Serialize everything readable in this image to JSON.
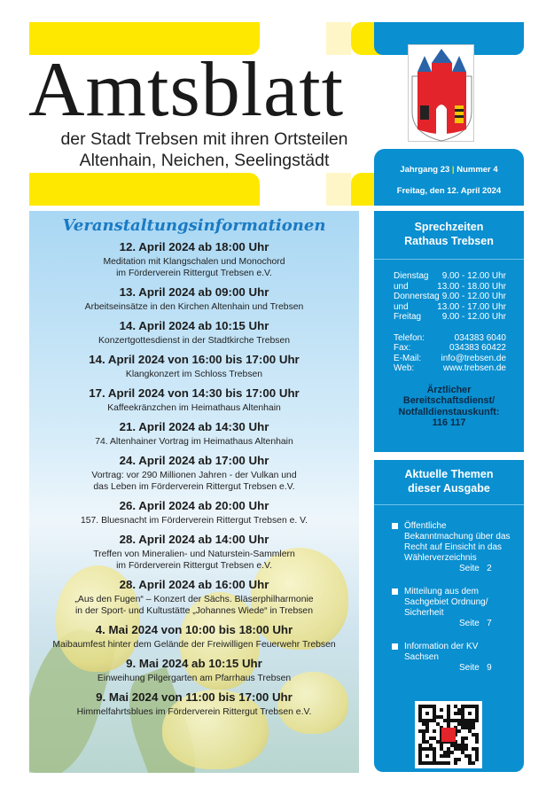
{
  "masthead": {
    "title": "Amtsblatt",
    "subtitle_line1": "der Stadt Trebsen mit ihren Ortsteilen",
    "subtitle_line2": "Altenhain, Neichen, Seelingstädt",
    "jahrgang": "Jahrgang 23",
    "nummer": "Nummer 4",
    "date": "Freitag, den 12. April 2024"
  },
  "colors": {
    "yellow": "#ffe800",
    "blue": "#0a8fd0",
    "heading_blue": "#1a7ac3"
  },
  "events": {
    "heading": "Veranstaltungsinformationen",
    "items": [
      {
        "date": "12. April 2024 ab 18:00 Uhr",
        "text": "Meditation mit Klangschalen und Monochord",
        "text2": "im Förderverein Rittergut Trebsen e.V."
      },
      {
        "date": "13. April 2024 ab 09:00 Uhr",
        "text": "Arbeitseinsätze in den Kirchen Altenhain und Trebsen"
      },
      {
        "date": "14. April 2024 ab 10:15 Uhr",
        "text": "Konzertgottesdienst in der Stadtkirche Trebsen"
      },
      {
        "date": "14. April 2024 von 16:00 bis 17:00 Uhr",
        "text": "Klangkonzert im Schloss Trebsen"
      },
      {
        "date": "17. April 2024 von 14:30 bis 17:00 Uhr",
        "text": "Kaffeekränzchen im Heimathaus Altenhain"
      },
      {
        "date": "21. April 2024 ab 14:30 Uhr",
        "text": "74. Altenhainer Vortrag im Heimathaus Altenhain"
      },
      {
        "date": "24. April 2024 ab 17:00 Uhr",
        "text": "Vortrag: vor 290 Millionen Jahren - der Vulkan und",
        "text2": "das Leben im Förderverein Rittergut Trebsen e.V."
      },
      {
        "date": "26. April 2024 ab 20:00 Uhr",
        "text": "157. Bluesnacht im Förderverein Rittergut Trebsen e. V."
      },
      {
        "date": "28. April 2024 ab 14:00 Uhr",
        "text": "Treffen von Mineralien- und Naturstein-Sammlern",
        "text2": "im Förderverein Rittergut Trebsen e.V."
      },
      {
        "date": "28. April 2024 ab 16:00 Uhr",
        "text": "„Aus den Fugen“ – Konzert der Sächs. Bläserphilharmonie",
        "text2": "in der Sport- und Kultustätte „Johannes Wiede“ in Trebsen"
      },
      {
        "date": "4. Mai 2024 von 10:00 bis 18:00 Uhr",
        "text": "Maibaumfest hinter dem Gelände der Freiwilligen Feuerwehr Trebsen"
      },
      {
        "date": "9. Mai 2024 ab 10:15 Uhr",
        "text": "Einweihung Pilgergarten am Pfarrhaus Trebsen"
      },
      {
        "date": "9. Mai 2024 von 11:00 bis 17:00 Uhr",
        "text": "Himmelfahrtsblues im Förderverein Rittergut Trebsen e.V."
      }
    ]
  },
  "office": {
    "heading1": "Sprechzeiten",
    "heading2": "Rathaus Trebsen",
    "hours": [
      [
        "Dienstag",
        "9.00 - 12.00 Uhr"
      ],
      [
        "und",
        "13.00 - 18.00 Uhr"
      ],
      [
        "Donnerstag",
        "9.00 - 12.00 Uhr"
      ],
      [
        "und",
        "13.00 - 17.00 Uhr"
      ],
      [
        "Freitag",
        "9.00 - 12.00 Uhr"
      ]
    ],
    "contact": [
      [
        "Telefon:",
        "034383 6040"
      ],
      [
        "Fax:",
        "034383 60422"
      ],
      [
        "E-Mail:",
        "info@trebsen.de"
      ],
      [
        "Web:",
        "www.trebsen.de"
      ]
    ],
    "emergency": [
      "Ärztlicher",
      "Bereitschaftsdienst/",
      "Notfalldienstauskunft:",
      "116 117"
    ]
  },
  "topics": {
    "heading1": "Aktuelle Themen",
    "heading2": "dieser Ausgabe",
    "items": [
      {
        "title": "Öffentliche Bekanntmachung über das Recht auf Einsicht in das Wählerverzeichnis",
        "page": "Seite   2"
      },
      {
        "title": "Mitteilung aus dem Sachgebiet Ordnung/ Sicherheit",
        "page": "Seite   7"
      },
      {
        "title": "Information der KV Sachsen",
        "page": "Seite   9"
      }
    ]
  }
}
